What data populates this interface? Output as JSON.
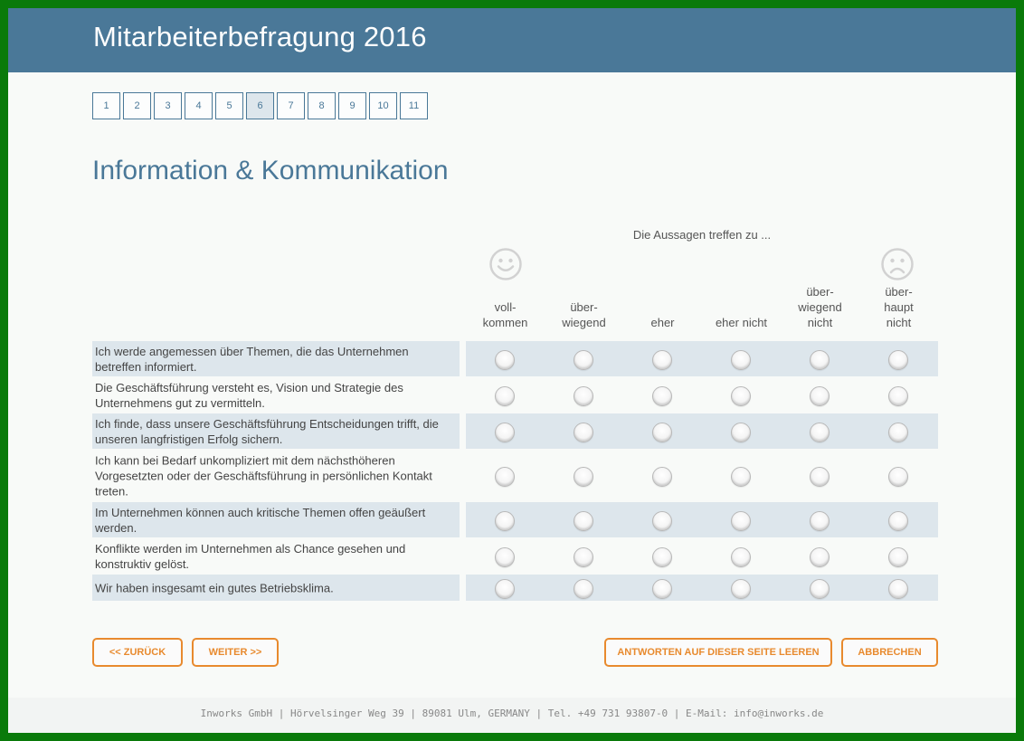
{
  "header": {
    "title": "Mitarbeiterbefragung 2016"
  },
  "pager": {
    "pages": [
      "1",
      "2",
      "3",
      "4",
      "5",
      "6",
      "7",
      "8",
      "9",
      "10",
      "11"
    ],
    "current": "6"
  },
  "section": {
    "title": "Information & Kommunikation"
  },
  "scale": {
    "caption": "Die Aussagen treffen zu ...",
    "positive_icon": "smiley-happy-icon",
    "negative_icon": "smiley-sad-icon",
    "columns": [
      [
        "voll-",
        "kommen"
      ],
      [
        "über-",
        "wiegend"
      ],
      [
        "eher"
      ],
      [
        "eher nicht"
      ],
      [
        "über-",
        "wiegend",
        "nicht"
      ],
      [
        "über-",
        "haupt",
        "nicht"
      ]
    ]
  },
  "questions": [
    "Ich werde angemessen über Themen, die das Unternehmen betreffen informiert.",
    "Die Geschäftsführung versteht es, Vision und Strategie des Unternehmens gut zu vermitteln.",
    "Ich finde, dass unsere Geschäftsführung Entscheidungen trifft, die unseren langfristigen Erfolg sichern.",
    "Ich kann bei Bedarf unkompliziert mit dem nächsthöheren Vorgesetzten oder der Geschäftsführung in persönlichen Kontakt treten.",
    "Im Unternehmen können auch kritische Themen offen geäußert werden.",
    "Konflikte werden im Unternehmen als Chance gesehen und konstruktiv gelöst.",
    "Wir haben insgesamt ein gutes Betriebsklima."
  ],
  "buttons": {
    "back": "<< ZURÜCK",
    "next": "WEITER >>",
    "clear": "ANTWORTEN AUF DIESER SEITE  LEEREN",
    "cancel": "ABBRECHEN"
  },
  "footer": {
    "text": "Inworks GmbH | Hörvelsinger Weg 39 | 89081 Ulm, GERMANY | Tel. +49 731 93807-0 | E-Mail: info@inworks.de"
  },
  "colors": {
    "header_bg": "#4a7898",
    "accent": "#e88a2e",
    "row_shade": "#dde6ec"
  }
}
